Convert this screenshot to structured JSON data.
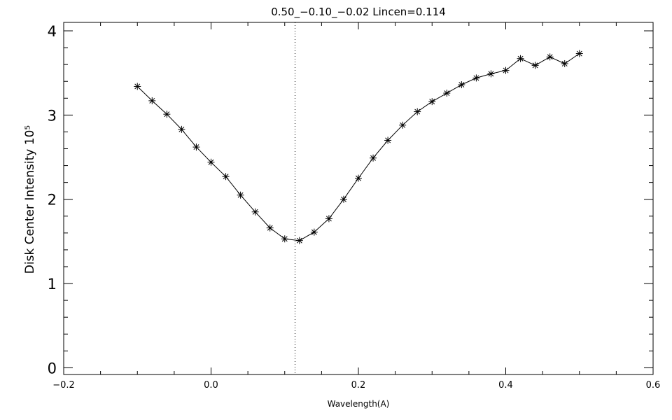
{
  "chart_data": {
    "type": "line",
    "title": "0.50_−0.10_−0.02   Lincen=0.114",
    "xlabel": "Wavelength(A)",
    "ylabel": "Disk Center Intensity 10⁵",
    "xlim": [
      -0.2,
      0.6
    ],
    "ylim": [
      -0.08,
      4.1
    ],
    "x_ticks": [
      -0.2,
      0.0,
      0.2,
      0.4,
      0.6
    ],
    "x_tick_labels": [
      "−0.2",
      "0.0",
      "0.2",
      "0.4",
      "0.6"
    ],
    "y_ticks": [
      0,
      1,
      2,
      3,
      4
    ],
    "y_tick_labels": [
      "0",
      "1",
      "2",
      "3",
      "4"
    ],
    "marker": "asterisk",
    "grid": false,
    "vline": {
      "x": 0.114,
      "style": "dotted"
    },
    "series": [
      {
        "x": [
          -0.1,
          -0.08,
          -0.06,
          -0.04,
          -0.02,
          0.0,
          0.02,
          0.04,
          0.06,
          0.08,
          0.1,
          0.12,
          0.14,
          0.16,
          0.18,
          0.2,
          0.22,
          0.24,
          0.26,
          0.28,
          0.3,
          0.32,
          0.34,
          0.36,
          0.38,
          0.4,
          0.42,
          0.44,
          0.46,
          0.48,
          0.5
        ],
        "y": [
          3.34,
          3.17,
          3.01,
          2.83,
          2.62,
          2.44,
          2.27,
          2.05,
          1.85,
          1.66,
          1.53,
          1.51,
          1.61,
          1.77,
          2.0,
          2.25,
          2.49,
          2.7,
          2.88,
          3.04,
          3.16,
          3.26,
          3.36,
          3.44,
          3.49,
          3.53,
          3.67,
          3.59,
          3.69,
          3.61,
          3.73
        ]
      }
    ]
  }
}
